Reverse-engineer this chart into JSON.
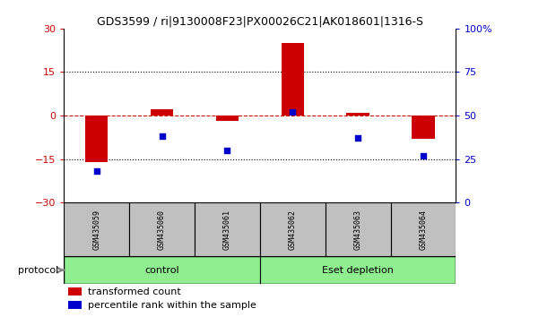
{
  "title": "GDS3599 / ri|9130008F23|PX00026C21|AK018601|1316-S",
  "samples": [
    "GSM435059",
    "GSM435060",
    "GSM435061",
    "GSM435062",
    "GSM435063",
    "GSM435064"
  ],
  "red_values": [
    -16.0,
    2.0,
    -2.0,
    25.0,
    1.0,
    -8.0
  ],
  "blue_values_pct": [
    18,
    38,
    30,
    52,
    37,
    27
  ],
  "ylim_left": [
    -30,
    30
  ],
  "ylim_right": [
    0,
    100
  ],
  "yticks_left": [
    -30,
    -15,
    0,
    15,
    30
  ],
  "yticks_right": [
    0,
    25,
    50,
    75,
    100
  ],
  "yticklabels_right": [
    "0",
    "25",
    "50",
    "75",
    "100%"
  ],
  "hlines": [
    15,
    -15
  ],
  "group_labels": [
    "control",
    "Eset depletion"
  ],
  "bar_color": "#CC0000",
  "square_color": "#0000CC",
  "protocol_label": "protocol",
  "legend_red": "transformed count",
  "legend_blue": "percentile rank within the sample",
  "bg_color": "#FFFFFF",
  "plot_bg": "#FFFFFF",
  "header_bg": "#C0C0C0",
  "green_light": "#90EE90",
  "green_dark": "#66CC66",
  "bar_width": 0.35
}
